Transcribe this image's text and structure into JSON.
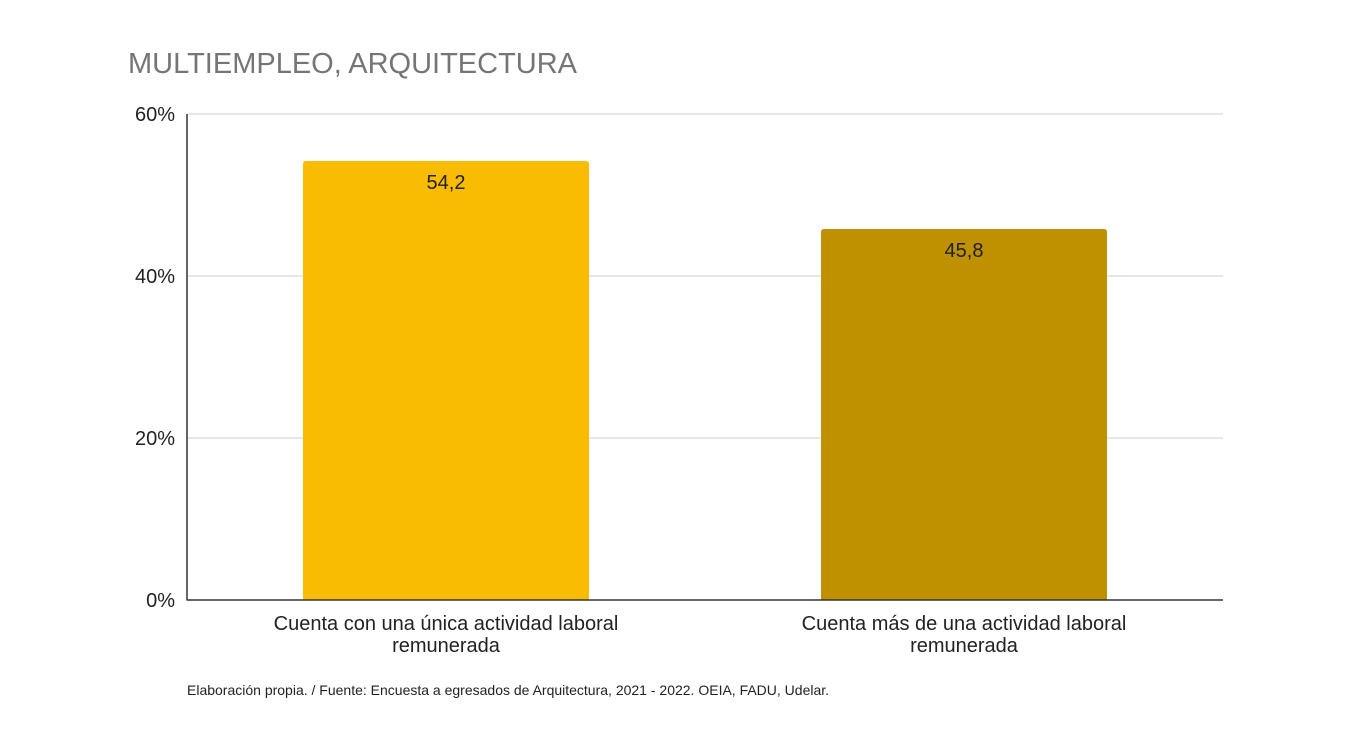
{
  "chart_data": {
    "type": "bar",
    "title": "MULTIEMPLEO, ARQUITECTURA",
    "xlabel": "",
    "ylabel": "",
    "ylim": [
      0,
      60
    ],
    "yticks": [
      "0%",
      "20%",
      "40%",
      "60%"
    ],
    "ytick_values": [
      0,
      20,
      40,
      60
    ],
    "grid": true,
    "legend": "none",
    "categories": [
      [
        "Cuenta con una única actividad laboral",
        "remunerada"
      ],
      [
        "Cuenta más de una actividad laboral",
        "remunerada"
      ]
    ],
    "values": [
      54.2,
      45.8
    ],
    "data_labels": [
      "54,2",
      "45,8"
    ],
    "colors": [
      "#F9BC02",
      "#BF9000"
    ],
    "grid_color": "#CCCCCC",
    "axis_color": "#333333"
  },
  "footer": {
    "source": "Elaboración propia. / Fuente: Encuesta a egresados de Arquitectura, 2021 - 2022. OEIA, FADU, Udelar."
  }
}
